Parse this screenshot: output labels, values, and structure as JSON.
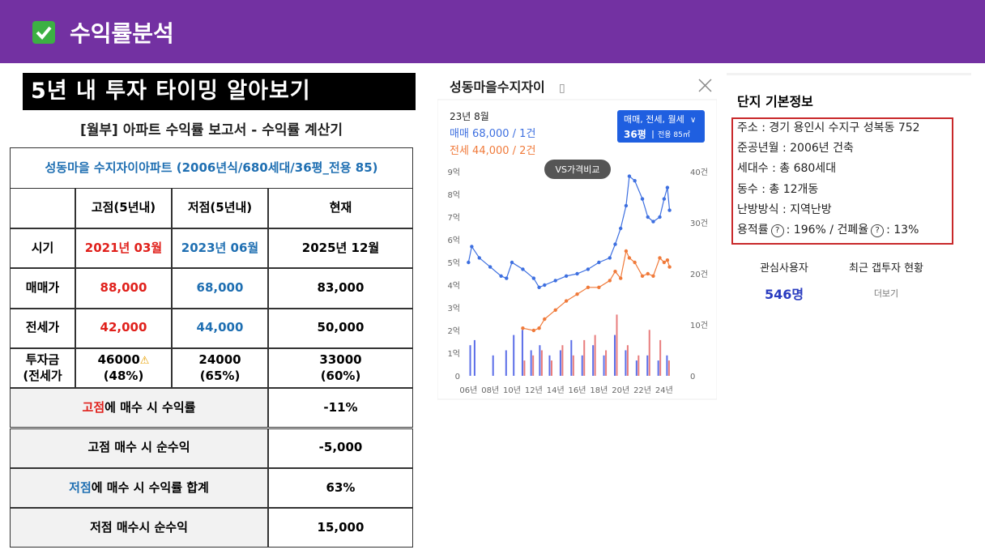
{
  "header": {
    "title": "수익률분석"
  },
  "report": {
    "banner": "5년 내 투자 타이밍 알아보기",
    "subtitle": "[월부] 아파트 수익률 보고서 - 수익률 계산기",
    "table": {
      "title": "성동마을 수지자이아파트 (2006년식/680세대/36평_전용 85)",
      "columns": [
        "고점(5년내)",
        "저점(5년내)",
        "현재"
      ],
      "rows": [
        {
          "label": "시기",
          "cells": [
            "2021년 03월",
            "2023년 06월",
            "2025년 12월"
          ]
        },
        {
          "label": "매매가",
          "cells": [
            "88,000",
            "68,000",
            "83,000"
          ]
        },
        {
          "label": "전세가",
          "cells": [
            "42,000",
            "44,000",
            "50,000"
          ]
        },
        {
          "label": [
            "투자금",
            "(전세가"
          ],
          "cells": [
            [
              "46000",
              "(48%)"
            ],
            [
              "24000",
              "(65%)"
            ],
            [
              "33000",
              "(60%)"
            ]
          ]
        }
      ],
      "summary": [
        {
          "highlight": "고점",
          "color": "#e0201b",
          "text": "에 매수 시 수익률",
          "value": "-11%"
        },
        {
          "text": "고점 매수 시 순수익",
          "value": "-5,000"
        },
        {
          "highlight": "저점",
          "color": "#1f6fb2",
          "text": "에 매수 시 수익률 합계",
          "value": "63%"
        },
        {
          "text": "저점 매수시 순수익",
          "value": "15,000"
        }
      ]
    }
  },
  "chart_panel": {
    "title": "성동마을수지자이",
    "tooltip": {
      "date": "23년 8월",
      "sale": "매매 68,000 / 1건",
      "jeonse": "전세 44,000 / 2건"
    },
    "filter": "매매, 전세, 월세",
    "size": "36평",
    "area": "전용 85㎡",
    "button": "VS가격비교",
    "chart_data": {
      "type": "line",
      "x": [
        2006,
        2006.3,
        2007,
        2008,
        2009,
        2009.5,
        2010,
        2011,
        2012,
        2012.5,
        2013,
        2014,
        2015,
        2016,
        2017,
        2018,
        2019,
        2019.5,
        2020,
        2020.5,
        2020.8,
        2021.3,
        2022,
        2022.5,
        2023,
        2023.6,
        2024,
        2024.3,
        2024.5
      ],
      "series": [
        {
          "color": "#3d6fe0",
          "values": [
            5.0,
            5.7,
            5.2,
            4.8,
            4.4,
            4.3,
            5.0,
            4.7,
            4.3,
            3.9,
            4.0,
            4.2,
            4.4,
            4.5,
            4.7,
            5.0,
            5.2,
            5.8,
            6.5,
            7.5,
            8.8,
            8.6,
            7.8,
            7.0,
            6.8,
            7.0,
            7.8,
            8.3,
            7.3
          ]
        },
        {
          "color": "#f07a3a",
          "values": [
            null,
            null,
            null,
            null,
            null,
            null,
            null,
            2.1,
            2.0,
            2.1,
            2.5,
            2.9,
            3.3,
            3.6,
            3.9,
            3.9,
            4.2,
            4.6,
            4.3,
            5.5,
            5.2,
            5.0,
            4.4,
            4.5,
            4.4,
            5.2,
            5.0,
            5.1,
            4.8
          ]
        }
      ],
      "volume_x": [
        2006.2,
        2006.6,
        2008.3,
        2009.5,
        2010.2,
        2011,
        2011.8,
        2012.6,
        2013.5,
        2014.5,
        2015.5,
        2016.5,
        2017.5,
        2018.5,
        2019.5,
        2020.5,
        2021.5,
        2022.5,
        2023.5,
        2024.3
      ],
      "volume_series": [
        {
          "color": "#5b6ee8",
          "axis": "y2",
          "values": [
            6,
            7,
            4,
            5,
            8,
            9,
            5,
            6,
            4,
            5,
            7,
            4,
            6,
            4,
            8,
            5,
            3,
            4,
            3,
            4
          ]
        },
        {
          "color": "#e87c7c",
          "axis": "y2",
          "values": [
            null,
            null,
            null,
            null,
            null,
            3,
            4,
            5,
            3,
            6,
            4,
            7,
            8,
            5,
            12,
            6,
            4,
            9,
            7,
            3
          ]
        }
      ],
      "xlim": [
        2005.9,
        2025.5
      ],
      "xticks": [
        {
          "value": 2006,
          "label": "06년"
        },
        {
          "value": 2008,
          "label": "08년"
        },
        {
          "value": 2010,
          "label": "10년"
        },
        {
          "value": 2012,
          "label": "12년"
        },
        {
          "value": 2014,
          "label": "14년"
        },
        {
          "value": 2016,
          "label": "16년"
        },
        {
          "value": 2018,
          "label": "18년"
        },
        {
          "value": 2020,
          "label": "20년"
        },
        {
          "value": 2022,
          "label": "22년"
        },
        {
          "value": 2024,
          "label": "24년"
        }
      ],
      "ylim": [
        0,
        9
      ],
      "yticks": [
        0,
        {
          "value": 1,
          "label": "1억"
        },
        {
          "value": 2,
          "label": "2억"
        },
        {
          "value": 3,
          "label": "3억"
        },
        {
          "value": 4,
          "label": "4억"
        },
        {
          "value": 5,
          "label": "5억"
        },
        {
          "value": 6,
          "label": "6억"
        },
        {
          "value": 7,
          "label": "7억"
        },
        {
          "value": 8,
          "label": "8억"
        },
        {
          "value": 9,
          "label": "9억"
        }
      ],
      "y2lim": [
        0,
        40
      ],
      "y2ticks": [
        0,
        {
          "value": 10,
          "label": "10건"
        },
        {
          "value": 20,
          "label": "20건"
        },
        {
          "value": 30,
          "label": "30건"
        },
        {
          "value": 40,
          "label": "40건"
        }
      ]
    }
  },
  "info": {
    "title": "단지 기본정보",
    "lines": [
      "주소 : 경기 용인시 수지구 성복동 752",
      "준공년월 : 2006년 건축",
      "세대수 : 총 680세대",
      "동수 : 총 12개동",
      "난방방식 : 지역난방"
    ],
    "ratio_parts": [
      "용적률",
      ": 196% / 건폐율",
      ": 13%"
    ],
    "stats": [
      {
        "label": "관심사용자",
        "value": "546명"
      },
      {
        "label": "최근 갭투자 현황",
        "value": "더보기"
      }
    ]
  }
}
